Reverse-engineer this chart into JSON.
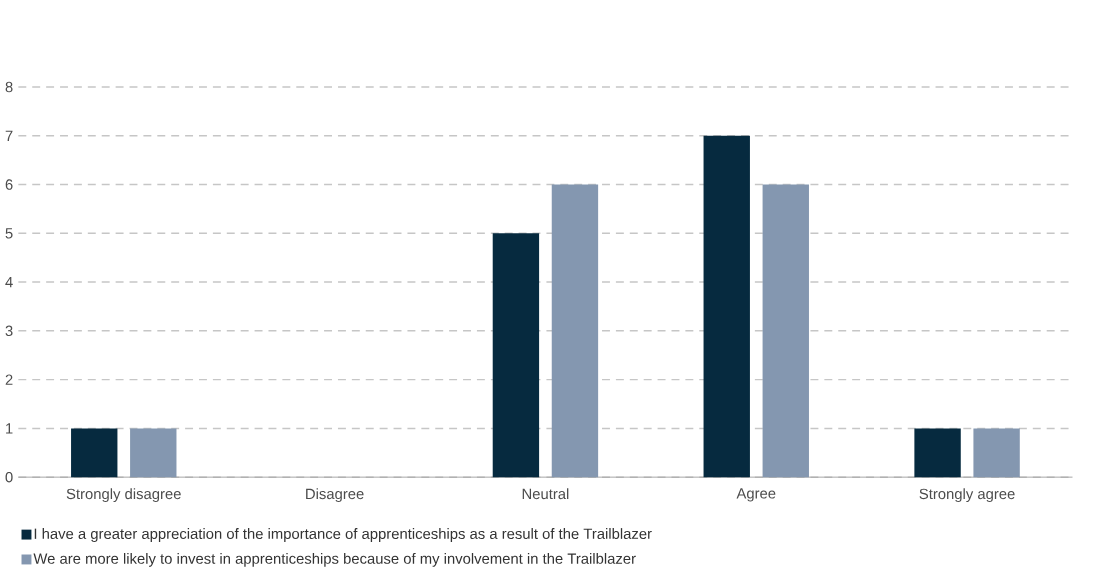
{
  "chart_data": {
    "type": "bar",
    "categories": [
      "Strongly disagree",
      "Disagree",
      "Neutral",
      "Agree",
      "Strongly agree"
    ],
    "series": [
      {
        "name": "I have a greater appreciation of the importance of apprenticeships as a result of the Trailblazer",
        "color": "#062a3f",
        "values": [
          1,
          0,
          5,
          7,
          1
        ]
      },
      {
        "name": "We are more likely to invest in apprenticeships because of my involvement in the Trailblazer",
        "color": "#8497b0",
        "values": [
          1,
          0,
          6,
          6,
          1
        ]
      }
    ],
    "ylim": [
      0,
      8
    ],
    "yticks": [
      0,
      1,
      2,
      3,
      4,
      5,
      6,
      7,
      8
    ],
    "grid": "y",
    "legend": "bottom"
  }
}
